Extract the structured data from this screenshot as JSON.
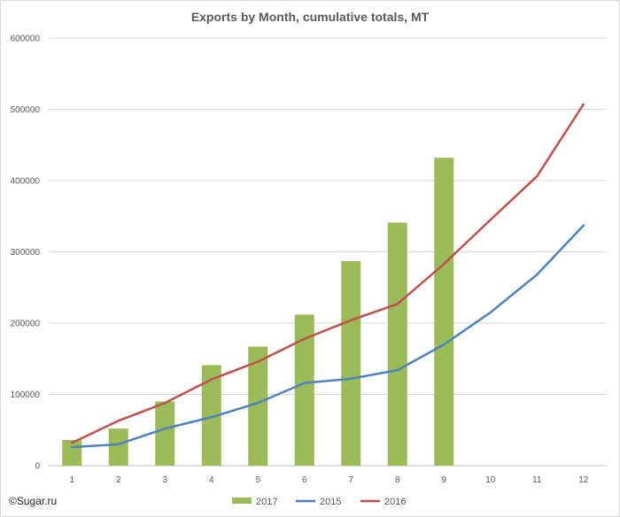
{
  "chart_data": {
    "type": "bar+line",
    "title": "Exports by Month, cumulative totals, MT",
    "categories": [
      "1",
      "2",
      "3",
      "4",
      "5",
      "6",
      "7",
      "8",
      "9",
      "10",
      "11",
      "12"
    ],
    "y_ticks": [
      "0",
      "100000",
      "200000",
      "300000",
      "400000",
      "500000",
      "600000"
    ],
    "ylim": [
      0,
      600000
    ],
    "grid": "horizontal",
    "legend_position": "bottom",
    "series": [
      {
        "name": "2017",
        "kind": "bar",
        "color": "#9bbb59",
        "values": [
          36000,
          52000,
          90000,
          141000,
          167000,
          212000,
          287000,
          341000,
          432000,
          null,
          null,
          null
        ]
      },
      {
        "name": "2015",
        "kind": "line",
        "color": "#4f81bd",
        "values": [
          26000,
          30000,
          52000,
          68000,
          88000,
          116000,
          122000,
          134000,
          170000,
          215000,
          268000,
          337000
        ]
      },
      {
        "name": "2016",
        "kind": "line",
        "color": "#c0504d",
        "values": [
          32000,
          63000,
          88000,
          121000,
          146000,
          178000,
          204000,
          227000,
          283000,
          345000,
          406000,
          507000
        ]
      }
    ]
  },
  "copyright": "©Sugar.ru"
}
